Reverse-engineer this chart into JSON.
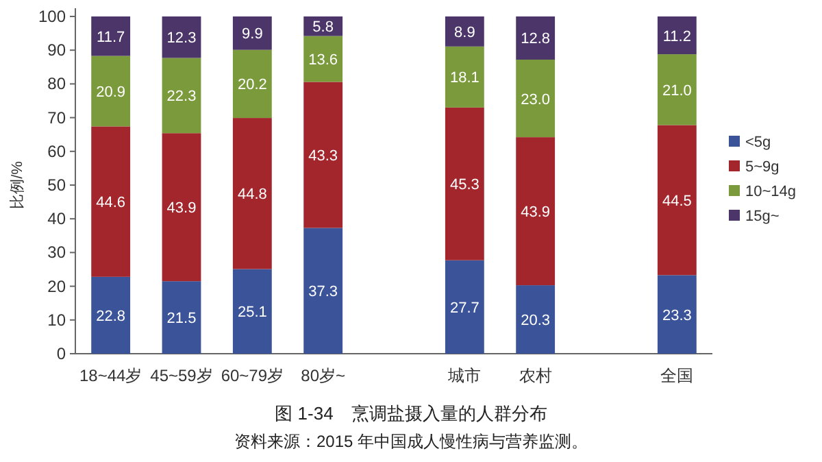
{
  "chart_data": {
    "type": "bar",
    "stacked": true,
    "title": "图 1-34　烹调盐摄入量的人群分布",
    "annotations": [
      "资料来源：2015 年中国成人慢性病与营养监测。"
    ],
    "ylabel": "比例/%",
    "categories": [
      "18~44岁",
      "45~59岁",
      "60~79岁",
      "80岁~",
      null,
      "城市",
      "农村",
      null,
      "全国"
    ],
    "ylim": [
      0,
      100
    ],
    "yticks": [
      0,
      10,
      20,
      30,
      40,
      50,
      60,
      70,
      80,
      90,
      100
    ],
    "legend": "right",
    "data_labels": true,
    "grid": false,
    "series": [
      {
        "name": "<5g",
        "color": "#3a5399",
        "values": [
          22.8,
          21.5,
          25.1,
          37.3,
          null,
          27.7,
          20.3,
          null,
          23.3
        ]
      },
      {
        "name": "5~9g",
        "color": "#a3262d",
        "values": [
          44.6,
          43.9,
          44.8,
          43.3,
          null,
          45.3,
          43.9,
          null,
          44.5
        ]
      },
      {
        "name": "10~14g",
        "color": "#7a9a3c",
        "values": [
          20.9,
          22.3,
          20.2,
          13.6,
          null,
          18.1,
          23.0,
          null,
          21.0
        ],
        "value_labels": [
          "20.9",
          "22.3",
          "20.2",
          "13.6",
          null,
          "18.1",
          "23.0",
          null,
          "21.0"
        ]
      },
      {
        "name": "15g~",
        "color": "#4b3569",
        "values": [
          11.7,
          12.3,
          9.9,
          5.8,
          null,
          8.9,
          12.8,
          null,
          11.2
        ]
      }
    ]
  }
}
